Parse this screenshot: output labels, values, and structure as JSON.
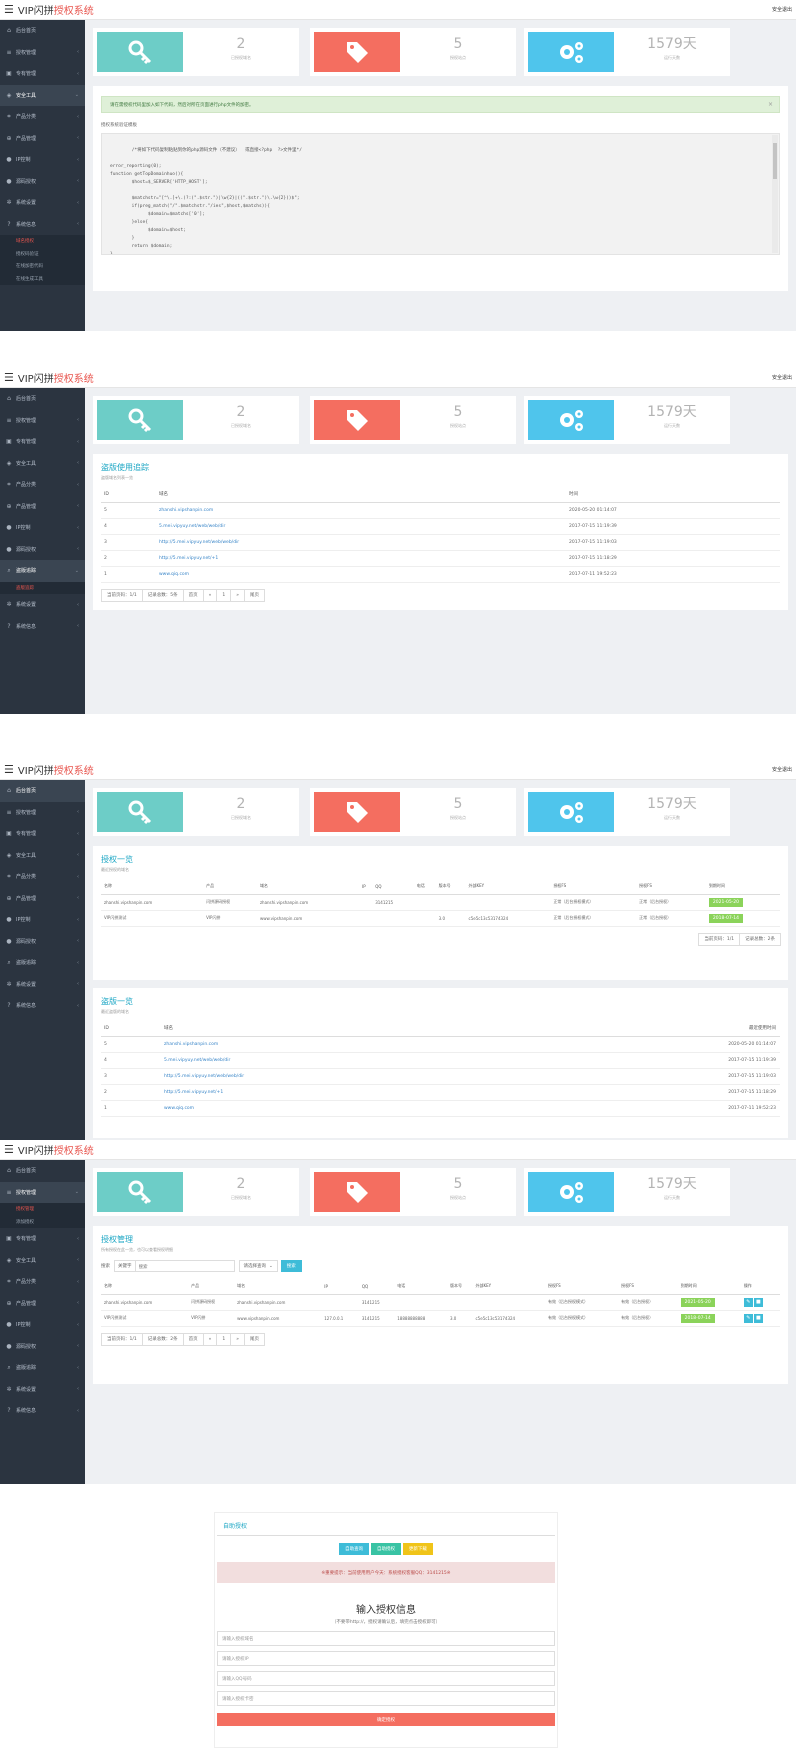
{
  "app": {
    "brand_a": "VIP闪拼",
    "brand_b": "授权系统"
  },
  "stats": [
    {
      "value": "2",
      "label": "已授权域名",
      "color": "#6dcdc7",
      "icon": "key-icon"
    },
    {
      "value": "5",
      "label": "授权站点",
      "color": "#f46e60",
      "icon": "tag-icon"
    },
    {
      "value": "1579天",
      "label": "运行天数",
      "color": "#4fc5ec",
      "icon": "gears-icon"
    }
  ],
  "panel1": {
    "top_right": "安全退出",
    "sidebar": [
      {
        "label": "后台首页",
        "icon": "home-icon"
      },
      {
        "label": "授权管理",
        "icon": "list-icon",
        "chev": "‹"
      },
      {
        "label": "专有管理",
        "icon": "box-icon",
        "chev": "‹"
      },
      {
        "label": "安全工具",
        "icon": "shield-icon",
        "chev": "⌄",
        "active": true
      },
      {
        "label": "产品分类",
        "icon": "tags-icon",
        "chev": "‹"
      },
      {
        "label": "产品管理",
        "icon": "cart-icon",
        "chev": "‹"
      },
      {
        "label": "IP控制",
        "icon": "info-icon",
        "chev": "‹"
      },
      {
        "label": "源码授权",
        "icon": "info-icon",
        "chev": "‹"
      },
      {
        "label": "系统设置",
        "icon": "cogs-icon",
        "chev": "‹"
      },
      {
        "label": "系统信息",
        "icon": "question-icon",
        "chev": "‹"
      }
    ],
    "sub": [
      "域名授权",
      "授权码验证",
      "在线加密代码",
      "在线生成工具"
    ],
    "alert": "请在需授权代码里加入如下代码，然后对所在页面进行php文件的加密。",
    "code_label": "授权系统验证模板",
    "code": "/*将如下代码复制粘贴到你的php源码文件（不建议）  或直接<?php  ?>文件里*/\n\nerror_reporting(0);\nfunction getTopDomainhuo(){\n        $host=$_SERVER['HTTP_HOST'];\n\n        $matchstr=\"[^\\.]+\\.(?:(\".$str.\")|\\w{2}|((\".$str.\")\\.\\w{2}))$\";\n        if(preg_match(\"/\".$matchstr.\"/ies\",$host,$matchs)){\n              $domain=$matchs['0'];\n        }else{\n              $domain=$host;\n        }\n        return $domain;\n}\n$host=getTopDomainhuo();"
  },
  "panel2": {
    "top_right": "安全退出",
    "sidebar": [
      {
        "label": "后台首页",
        "icon": "home-icon"
      },
      {
        "label": "授权管理",
        "icon": "list-icon",
        "chev": "‹"
      },
      {
        "label": "专有管理",
        "icon": "box-icon",
        "chev": "‹"
      },
      {
        "label": "安全工具",
        "icon": "shield-icon",
        "chev": "‹"
      },
      {
        "label": "产品分类",
        "icon": "tags-icon",
        "chev": "‹"
      },
      {
        "label": "产品管理",
        "icon": "cart-icon",
        "chev": "‹"
      },
      {
        "label": "IP控制",
        "icon": "info-icon",
        "chev": "‹"
      },
      {
        "label": "源码授权",
        "icon": "info-icon",
        "chev": "‹"
      },
      {
        "label": "盗版追踪",
        "icon": "search-icon",
        "chev": "⌄",
        "active": true
      }
    ],
    "sub": [
      "盗版追踪"
    ],
    "sidebar_tail": [
      {
        "label": "系统设置",
        "icon": "cogs-icon",
        "chev": "‹"
      },
      {
        "label": "系统信息",
        "icon": "question-icon",
        "chev": "‹"
      }
    ],
    "title": "盗版使用追踪",
    "subtitle": "盗版域名列表一览",
    "headers": [
      "ID",
      "域名",
      "时间"
    ],
    "rows": [
      [
        "5",
        "zhanshi.vipshanpin.com",
        "2020-05-20 01:14:07"
      ],
      [
        "4",
        "5.mei.vipyuy.net/web/web/dir",
        "2017-07-15 11:19:39"
      ],
      [
        "3",
        "http://5.mei.vipyuy.net/web/web/dir",
        "2017-07-15 11:19:03"
      ],
      [
        "2",
        "http://5.mei.vipyuy.net/+1",
        "2017-07-15 11:18:29"
      ],
      [
        "1",
        "www.qiq.com",
        "2017-07-11 19:52:23"
      ]
    ],
    "pager": [
      "当前页码：1/1",
      "记录总数：5条",
      "首页",
      "«",
      "1",
      "»",
      "尾页"
    ]
  },
  "panel3": {
    "top_right": "安全退出",
    "sidebar": [
      {
        "label": "后台首页",
        "icon": "home-icon",
        "active": true
      },
      {
        "label": "授权管理",
        "icon": "list-icon",
        "chev": "‹"
      },
      {
        "label": "专有管理",
        "icon": "box-icon",
        "chev": "‹"
      },
      {
        "label": "安全工具",
        "icon": "shield-icon",
        "chev": "‹"
      },
      {
        "label": "产品分类",
        "icon": "tags-icon",
        "chev": "‹"
      },
      {
        "label": "产品管理",
        "icon": "cart-icon",
        "chev": "‹"
      },
      {
        "label": "IP控制",
        "icon": "info-icon",
        "chev": "‹"
      },
      {
        "label": "源码授权",
        "icon": "info-icon",
        "chev": "‹"
      },
      {
        "label": "盗版追踪",
        "icon": "search-icon",
        "chev": "‹"
      },
      {
        "label": "系统设置",
        "icon": "cogs-icon",
        "chev": "‹"
      },
      {
        "label": "系统信息",
        "icon": "question-icon",
        "chev": "‹"
      }
    ],
    "title": "授权一览",
    "subtitle": "最近授权的域名",
    "headers": [
      "名称",
      "产品",
      "域名",
      "IP",
      "QQ",
      "电话",
      "版本号",
      "外部KEY",
      "授权FS",
      "授权FS",
      "到期时间"
    ],
    "rows": [
      [
        "zhanshi.vipshanpin.com",
        "闪拼源码授权",
        "zhanshi.vipshanpin.com",
        "",
        "3141215",
        "",
        "",
        "",
        "正常（后台授权模式）",
        "正常（后台授权）",
        "2021-05-20"
      ],
      [
        "VIP闪拼测试",
        "VIP闪拼",
        "www.vipshanpin.com",
        "",
        "",
        "",
        "3.0",
        "c5e5c13c53174324",
        "正常（后台授权模式）",
        "正常（后台授权）",
        "2018-07-14"
      ]
    ],
    "pager": [
      "当前页码：1/1",
      "记录总数：2条"
    ],
    "piracy_title": "盗版一览",
    "piracy_subtitle": "最近盗版的域名",
    "piracy_headers": [
      "ID",
      "域名",
      "最近使用时间"
    ],
    "piracy_rows": [
      [
        "5",
        "zhanshi.vipshanpin.com",
        "2020-05-20 01:14:07"
      ],
      [
        "4",
        "5.mei.vipyuy.net/web/web/dir",
        "2017-07-15 11:19:39"
      ],
      [
        "3",
        "http://5.mei.vipyuy.net/web/web/dir",
        "2017-07-15 11:19:03"
      ],
      [
        "2",
        "http://5.mei.vipyuy.net/+1",
        "2017-07-15 11:18:29"
      ],
      [
        "1",
        "www.qiq.com",
        "2017-07-11 19:52:23"
      ]
    ]
  },
  "panel4": {
    "sidebar": [
      {
        "label": "后台首页",
        "icon": "home-icon"
      },
      {
        "label": "授权管理",
        "icon": "list-icon",
        "chev": "⌄",
        "active": true
      }
    ],
    "sub": [
      "授权管理",
      "添加授权"
    ],
    "sidebar_tail": [
      {
        "label": "专有管理",
        "icon": "box-icon",
        "chev": "‹"
      },
      {
        "label": "安全工具",
        "icon": "shield-icon",
        "chev": "‹"
      },
      {
        "label": "产品分类",
        "icon": "tags-icon",
        "chev": "‹"
      },
      {
        "label": "产品管理",
        "icon": "cart-icon",
        "chev": "‹"
      },
      {
        "label": "IP控制",
        "icon": "info-icon",
        "chev": "‹"
      },
      {
        "label": "源码授权",
        "icon": "info-icon",
        "chev": "‹"
      },
      {
        "label": "盗版追踪",
        "icon": "search-icon",
        "chev": "‹"
      },
      {
        "label": "系统设置",
        "icon": "cogs-icon",
        "chev": "‹"
      },
      {
        "label": "系统信息",
        "icon": "question-icon",
        "chev": "‹"
      }
    ],
    "title": "授权管理",
    "subtitle": "所有授权在此一览，也可以查看授权明细",
    "search_prefix": "搜索",
    "search_value": "关键字",
    "search_placeholder": "搜索",
    "select_value": "请选择查询",
    "search_button": "搜索",
    "headers": [
      "名称",
      "产品",
      "域名",
      "IP",
      "QQ",
      "电话",
      "版本号",
      "外部KEY",
      "授权FS",
      "授权FS",
      "到期时间",
      "操作"
    ],
    "rows": [
      [
        "zhanshi.vipshanpin.com",
        "闪拼源码授权",
        "zhanshi.vipshanpin.com",
        "",
        "3141215",
        "",
        "",
        "",
        "有效（后台授权模式）",
        "有效（后台授权）",
        "2021-05-20"
      ],
      [
        "VIP闪拼测试",
        "VIP闪拼",
        "www.vipshanpin.com",
        "127.0.0.1",
        "3141215",
        "18888888888",
        "3.0",
        "c5e5c13c53174324",
        "有效（后台授权模式）",
        "有效（后台授权）",
        "2018-07-14"
      ]
    ],
    "pager": [
      "当前页码：1/1",
      "记录总数：2条",
      "首页",
      "«",
      "1",
      "»",
      "尾页"
    ]
  },
  "panel5": {
    "title": "自助授权",
    "buttons": [
      "自助查询",
      "自助授权",
      "更新下载"
    ],
    "notice": "※重要提示：当前使用用户今天：系统授权客服QQ：3141215※",
    "heading": "输入授权信息",
    "hint": "（不要带http://，授权请确认后，填完点击授权即可）",
    "fields": [
      "请输入授权域名",
      "请输入授权IP",
      "请输入QQ号码",
      "请输入授权卡密"
    ],
    "submit": "确定授权"
  }
}
